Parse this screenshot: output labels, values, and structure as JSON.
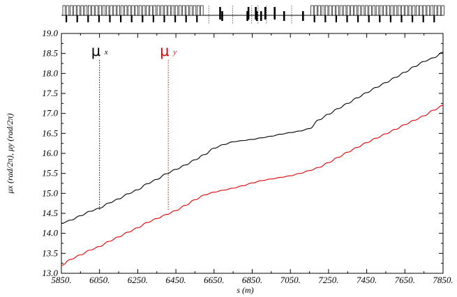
{
  "chart_data": {
    "type": "line",
    "title": "",
    "xlabel": "s (m)",
    "ylabel": "μx (rad/2π), μy (rad/2π)",
    "xlim": [
      5850,
      7850
    ],
    "ylim": [
      13.0,
      19.0
    ],
    "x_ticks": [
      "5850.",
      "6050.",
      "6250.",
      "6450.",
      "6650.",
      "6850.",
      "7050.",
      "7250.",
      "7450.",
      "7650.",
      "7850."
    ],
    "y_ticks": [
      "13.0",
      "13.5",
      "14.0",
      "14.5",
      "15.0",
      "15.5",
      "16.0",
      "16.5",
      "17.0",
      "17.5",
      "18.0",
      "18.5",
      "19.0"
    ],
    "grid": false,
    "legend": "none",
    "annotations": [
      {
        "text": "μ",
        "sub": "x",
        "color": "#000000",
        "marker_x": 6050
      },
      {
        "text": "μ",
        "sub": "y",
        "color": "#e00000",
        "marker_x": 6410
      }
    ],
    "series": [
      {
        "color": "#000000",
        "x": [
          5850,
          5900,
          5950,
          6000,
          6050,
          6100,
          6150,
          6200,
          6250,
          6300,
          6350,
          6400,
          6450,
          6500,
          6550,
          6600,
          6650,
          6700,
          6750,
          6800,
          6850,
          6900,
          6950,
          7000,
          7050,
          7100,
          7150,
          7200,
          7250,
          7300,
          7350,
          7400,
          7450,
          7500,
          7550,
          7600,
          7650,
          7700,
          7750,
          7800,
          7850
        ],
        "y": [
          14.25,
          14.33,
          14.44,
          14.55,
          14.63,
          14.76,
          14.86,
          14.99,
          15.09,
          15.24,
          15.35,
          15.49,
          15.6,
          15.71,
          15.84,
          15.97,
          16.13,
          16.22,
          16.29,
          16.32,
          16.35,
          16.39,
          16.43,
          16.48,
          16.52,
          16.56,
          16.62,
          16.84,
          16.98,
          17.12,
          17.25,
          17.39,
          17.52,
          17.65,
          17.77,
          17.9,
          18.03,
          18.17,
          18.3,
          18.39,
          18.53
        ]
      },
      {
        "color": "#e00000",
        "x": [
          5850,
          5900,
          5950,
          6000,
          6050,
          6100,
          6150,
          6200,
          6250,
          6300,
          6350,
          6400,
          6450,
          6500,
          6550,
          6600,
          6650,
          6700,
          6750,
          6800,
          6850,
          6900,
          6950,
          7000,
          7050,
          7100,
          7150,
          7200,
          7250,
          7300,
          7350,
          7400,
          7450,
          7500,
          7550,
          7600,
          7650,
          7700,
          7750,
          7800,
          7850
        ],
        "y": [
          13.2,
          13.35,
          13.46,
          13.58,
          13.67,
          13.8,
          13.91,
          14.03,
          14.14,
          14.27,
          14.37,
          14.47,
          14.57,
          14.7,
          14.84,
          14.96,
          15.03,
          15.08,
          15.13,
          15.19,
          15.26,
          15.32,
          15.36,
          15.4,
          15.44,
          15.5,
          15.57,
          15.65,
          15.77,
          15.9,
          16.03,
          16.15,
          16.27,
          16.38,
          16.49,
          16.6,
          16.72,
          16.83,
          16.94,
          17.08,
          17.2
        ]
      }
    ],
    "lattice_strip": {
      "segments": [
        {
          "from": 5850,
          "to": 6600,
          "kind": "dense"
        },
        {
          "from": 6600,
          "to": 7150,
          "kind": "sparse"
        },
        {
          "from": 7150,
          "to": 7850,
          "kind": "dense"
        }
      ]
    }
  }
}
